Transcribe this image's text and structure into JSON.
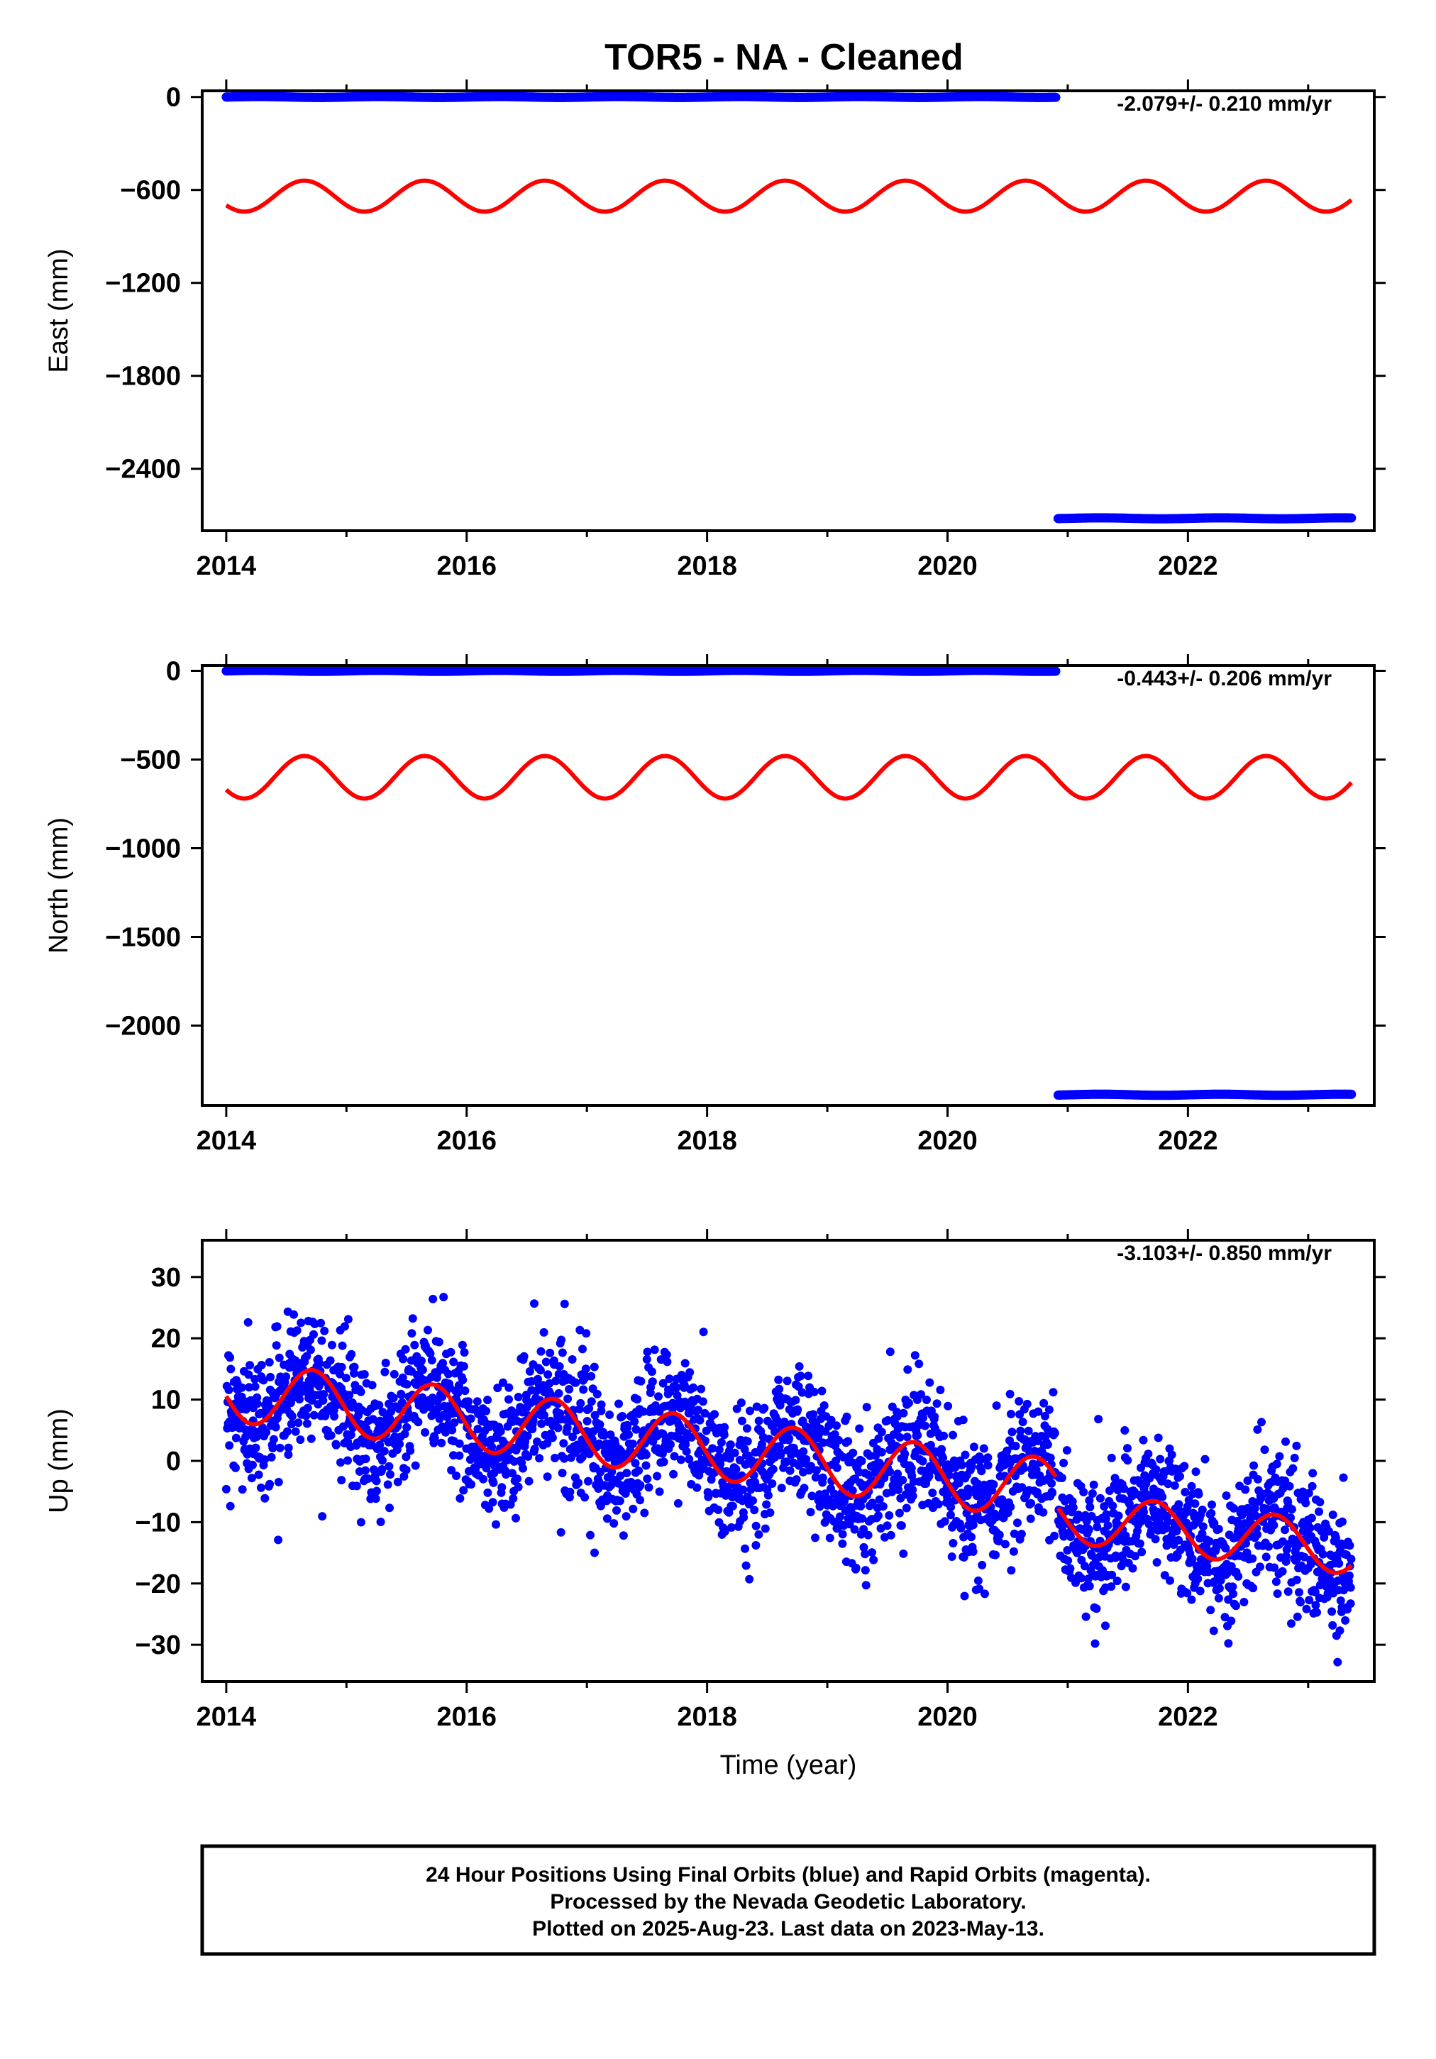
{
  "title": "TOR5  - NA - Cleaned",
  "footer": {
    "line1": "24 Hour Positions Using Final Orbits (blue) and Rapid Orbits (magenta).",
    "line2": "Processed by the Nevada Geodetic Laboratory.",
    "line3": "Plotted on 2025-Aug-23. Last data on 2023-May-13."
  },
  "colors": {
    "data": "#0000ff",
    "model": "#ff0000",
    "axes": "#000000"
  },
  "chart_data": [
    {
      "type": "scatter",
      "name": "east-panel",
      "ylabel": "East (mm)",
      "xlabel": "",
      "rate_label": "-2.079+/- 0.210 mm/yr",
      "xlim": [
        2013.8,
        2023.55
      ],
      "ylim": [
        -2800,
        40
      ],
      "xticks": [
        2014,
        2016,
        2018,
        2020,
        2022
      ],
      "xtick_labels": [
        "2014",
        "2016",
        "2018",
        "2020",
        "2022"
      ],
      "yticks": [
        0,
        -600,
        -1200,
        -1800,
        -2400
      ],
      "ytick_labels": [
        "0",
        "−600",
        "−1200",
        "−1800",
        "−2400"
      ],
      "data_segments": [
        {
          "x_start": 2014.0,
          "x_end": 2020.9,
          "y": 0
        },
        {
          "x_start": 2020.92,
          "x_end": 2023.36,
          "y": -2720
        }
      ],
      "model": {
        "offset": -640,
        "amplitude": 100,
        "period_yr": 1.0,
        "peak_year": 2014.65,
        "x_start": 2014.0,
        "x_end": 2023.36
      }
    },
    {
      "type": "scatter",
      "name": "north-panel",
      "ylabel": "North (mm)",
      "xlabel": "",
      "rate_label": "-0.443+/- 0.206 mm/yr",
      "xlim": [
        2013.8,
        2023.55
      ],
      "ylim": [
        -2450,
        30
      ],
      "xticks": [
        2014,
        2016,
        2018,
        2020,
        2022
      ],
      "xtick_labels": [
        "2014",
        "2016",
        "2018",
        "2020",
        "2022"
      ],
      "yticks": [
        0,
        -500,
        -1000,
        -1500,
        -2000
      ],
      "ytick_labels": [
        "0",
        "−500",
        "−1000",
        "−1500",
        "−2000"
      ],
      "data_segments": [
        {
          "x_start": 2014.0,
          "x_end": 2020.9,
          "y": 0
        },
        {
          "x_start": 2020.92,
          "x_end": 2023.36,
          "y": -2390
        }
      ],
      "model": {
        "offset": -600,
        "amplitude": 120,
        "period_yr": 1.0,
        "peak_year": 2014.65,
        "x_start": 2014.0,
        "x_end": 2023.36
      }
    },
    {
      "type": "scatter",
      "name": "up-panel",
      "ylabel": "Up (mm)",
      "xlabel": "Time (year)",
      "rate_label": "-3.103+/- 0.850 mm/yr",
      "xlim": [
        2013.8,
        2023.55
      ],
      "ylim": [
        -36,
        36
      ],
      "xticks": [
        2014,
        2016,
        2018,
        2020,
        2022
      ],
      "xtick_labels": [
        "2014",
        "2016",
        "2018",
        "2020",
        "2022"
      ],
      "yticks": [
        30,
        20,
        10,
        0,
        -10,
        -20,
        -30
      ],
      "ytick_labels": [
        "30",
        "20",
        "10",
        "0",
        "−10",
        "−20",
        "−30"
      ],
      "scatter_trend": [
        {
          "x_start": 2014.0,
          "x_end": 2020.9,
          "y_at_start": 11.0,
          "rate": -2.3
        },
        {
          "x_start": 2020.92,
          "x_end": 2023.36,
          "y_at_start": -11.0,
          "rate": -2.0
        }
      ],
      "scatter_spread_mm": 5.5,
      "model_pieces": [
        {
          "x_start": 2014.0,
          "x_end": 2020.9,
          "y_at_start": 11.5,
          "rate": -2.35,
          "amplitude": 5.0,
          "peak_year": 2014.72
        },
        {
          "x_start": 2020.92,
          "x_end": 2023.36,
          "y_at_start": -9.0,
          "rate": -2.2,
          "amplitude": 4.2,
          "peak_year": 2021.72
        }
      ]
    }
  ]
}
